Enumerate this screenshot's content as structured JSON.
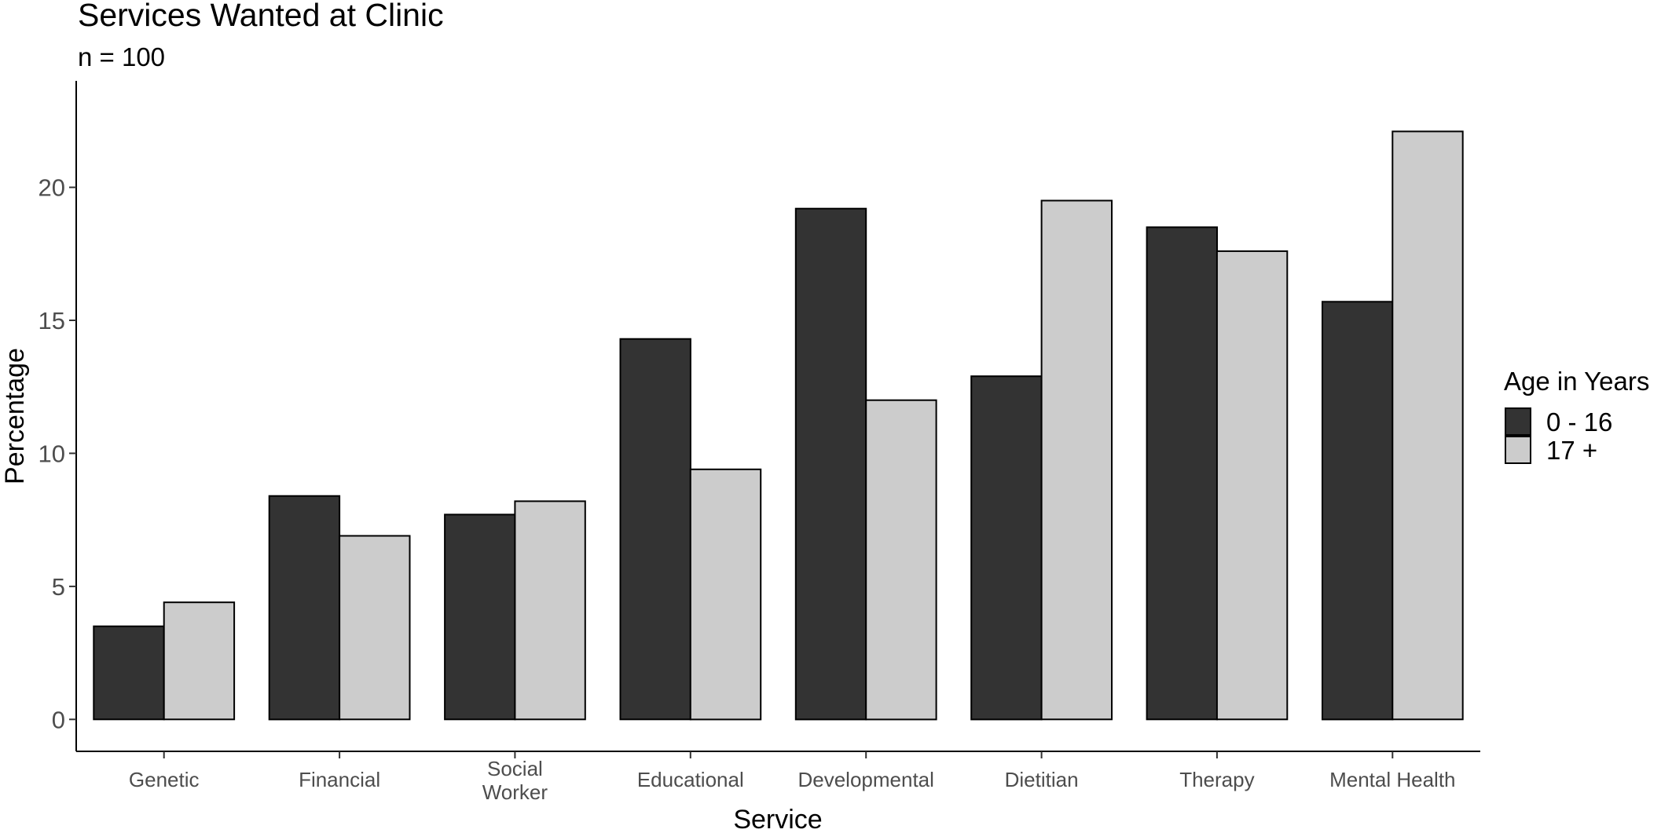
{
  "chart_data": {
    "type": "bar",
    "title": "Services Wanted at Clinic",
    "subtitle": "n = 100",
    "xlabel": "Service",
    "ylabel": "Percentage",
    "categories": [
      "Genetic",
      "Financial",
      "Social Worker",
      "Educational",
      "Developmental",
      "Dietitian",
      "Therapy",
      "Mental Health"
    ],
    "category_lines": [
      [
        "Genetic"
      ],
      [
        "Financial"
      ],
      [
        "Social",
        "Worker"
      ],
      [
        "Educational"
      ],
      [
        "Developmental"
      ],
      [
        "Dietitian"
      ],
      [
        "Therapy"
      ],
      [
        "Mental Health"
      ]
    ],
    "series": [
      {
        "name": "0 - 16",
        "color": "#333333",
        "values": [
          3.5,
          8.4,
          7.7,
          14.3,
          19.2,
          12.9,
          18.5,
          15.7
        ]
      },
      {
        "name": "17 +",
        "color": "#cccccc",
        "values": [
          4.4,
          6.9,
          8.2,
          9.4,
          12.0,
          19.5,
          17.6,
          22.1
        ]
      }
    ],
    "ylim": [
      -1.2,
      24.0
    ],
    "yticks": [
      0,
      5,
      10,
      15,
      20
    ],
    "legend": {
      "title": "Age in Years",
      "position": "right"
    },
    "grid": false
  }
}
